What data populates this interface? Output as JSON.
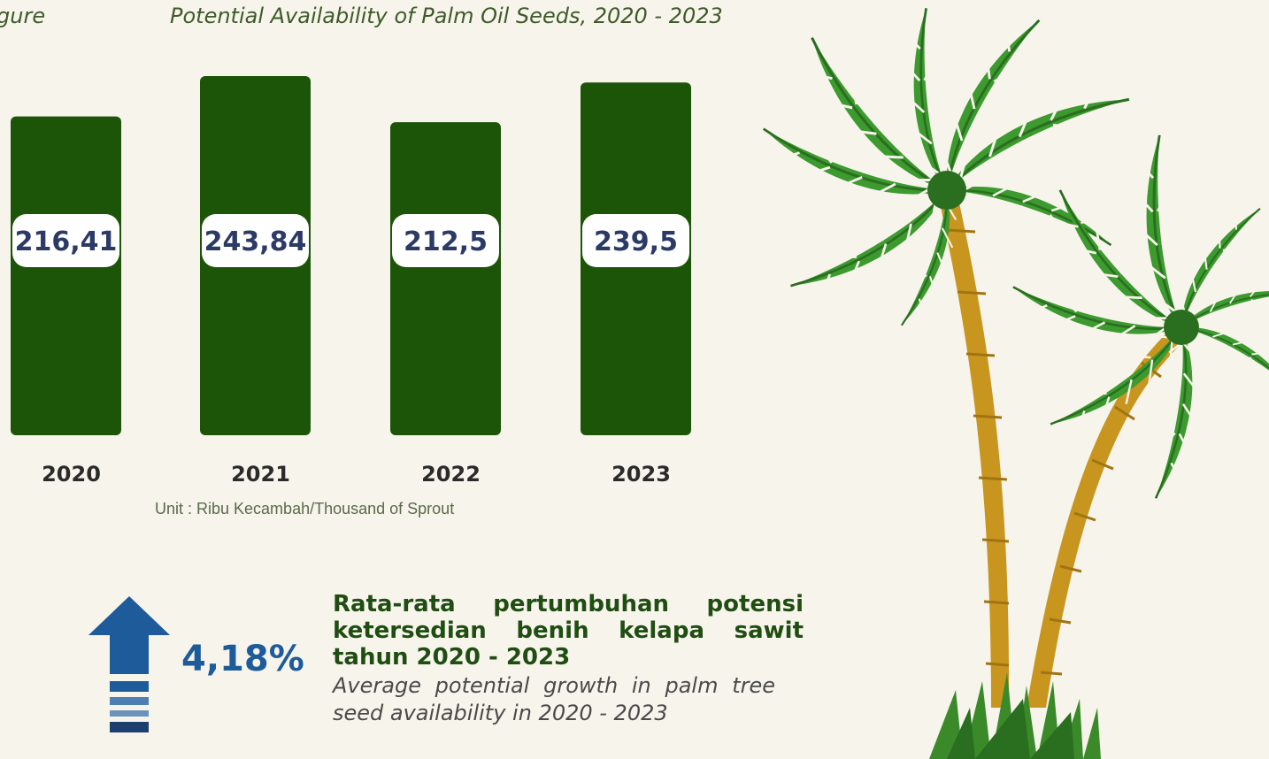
{
  "header": {
    "figure_label": "gure",
    "chart_title": "Potential Availability of Palm Oil Seeds, 2020 - 2023"
  },
  "chart_data": {
    "type": "bar",
    "title": "Potential Availability of Palm Oil Seeds, 2020 - 2023",
    "categories": [
      "2020",
      "2021",
      "2022",
      "2023"
    ],
    "values": [
      216.41,
      243.84,
      212.5,
      239.5
    ],
    "value_labels": [
      "216,41",
      "243,84",
      "212,5",
      "239,5"
    ],
    "unit": "Unit : Ribu Kecambah/Thousand of Sprout",
    "bar_color": "#1d5508",
    "legend": "none",
    "grid": false
  },
  "highlight": {
    "growth_value": "4,18%",
    "arrow_color": "#1d5b9a",
    "text_id": "Rata-rata pertumbuhan potensi ketersedian benih kelapa sawit tahun 2020 - 2023",
    "text_en": "Average potential growth in palm tree seed availability in 2020 - 2023"
  },
  "colors": {
    "background": "#f7f4ec",
    "title_text": "#3f5a2a",
    "value_label_text": "#2b3a66",
    "leaf": "#3c9a2e",
    "trunk": "#c8961e"
  },
  "decor": {
    "illustration": "palm-trees-icon"
  }
}
